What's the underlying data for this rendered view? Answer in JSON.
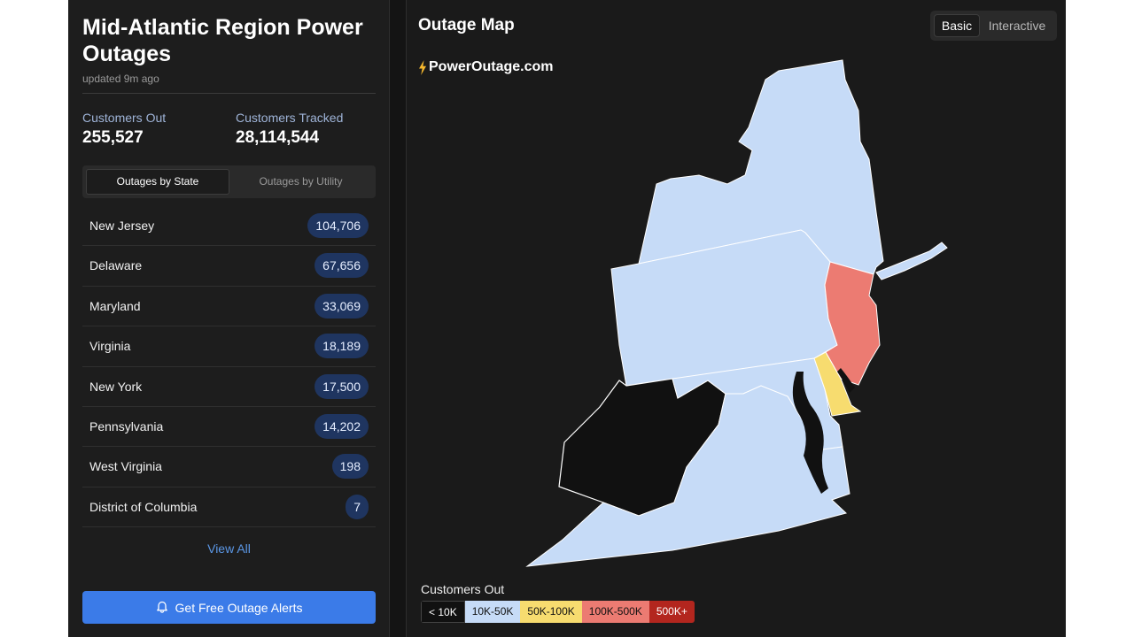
{
  "sidebar": {
    "title": "Mid-Atlantic Region Power Outages",
    "updated": "updated 9m ago",
    "stats": {
      "customers_out_label": "Customers Out",
      "customers_out_value": "255,527",
      "customers_tracked_label": "Customers Tracked",
      "customers_tracked_value": "28,114,544"
    },
    "tabs": [
      "Outages by State",
      "Outages by Utility"
    ],
    "states": [
      {
        "name": "New Jersey",
        "count": "104,706"
      },
      {
        "name": "Delaware",
        "count": "67,656"
      },
      {
        "name": "Maryland",
        "count": "33,069"
      },
      {
        "name": "Virginia",
        "count": "18,189"
      },
      {
        "name": "New York",
        "count": "17,500"
      },
      {
        "name": "Pennsylvania",
        "count": "14,202"
      },
      {
        "name": "West Virginia",
        "count": "198"
      },
      {
        "name": "District of Columbia",
        "count": "7"
      }
    ],
    "view_all": "View All",
    "alert_button": "Get Free Outage Alerts",
    "alert_icon": "bell-icon"
  },
  "map": {
    "title": "Outage Map",
    "toggle": [
      "Basic",
      "Interactive"
    ],
    "brand": "PowerOutage.com",
    "brand_icon": "lightning-bolt-icon",
    "legend_title": "Customers Out",
    "legend": [
      {
        "label": "< 10K",
        "color": "#111111",
        "text_color": "#ffffff"
      },
      {
        "label": "10K-50K",
        "color": "#c6dbf7",
        "text_color": "#111111"
      },
      {
        "label": "50K-100K",
        "color": "#f7dc6f",
        "text_color": "#111111"
      },
      {
        "label": "100K-500K",
        "color": "#ec7b72",
        "text_color": "#111111"
      },
      {
        "label": "500K+",
        "color": "#b3261e",
        "text_color": "#ffffff"
      }
    ]
  }
}
